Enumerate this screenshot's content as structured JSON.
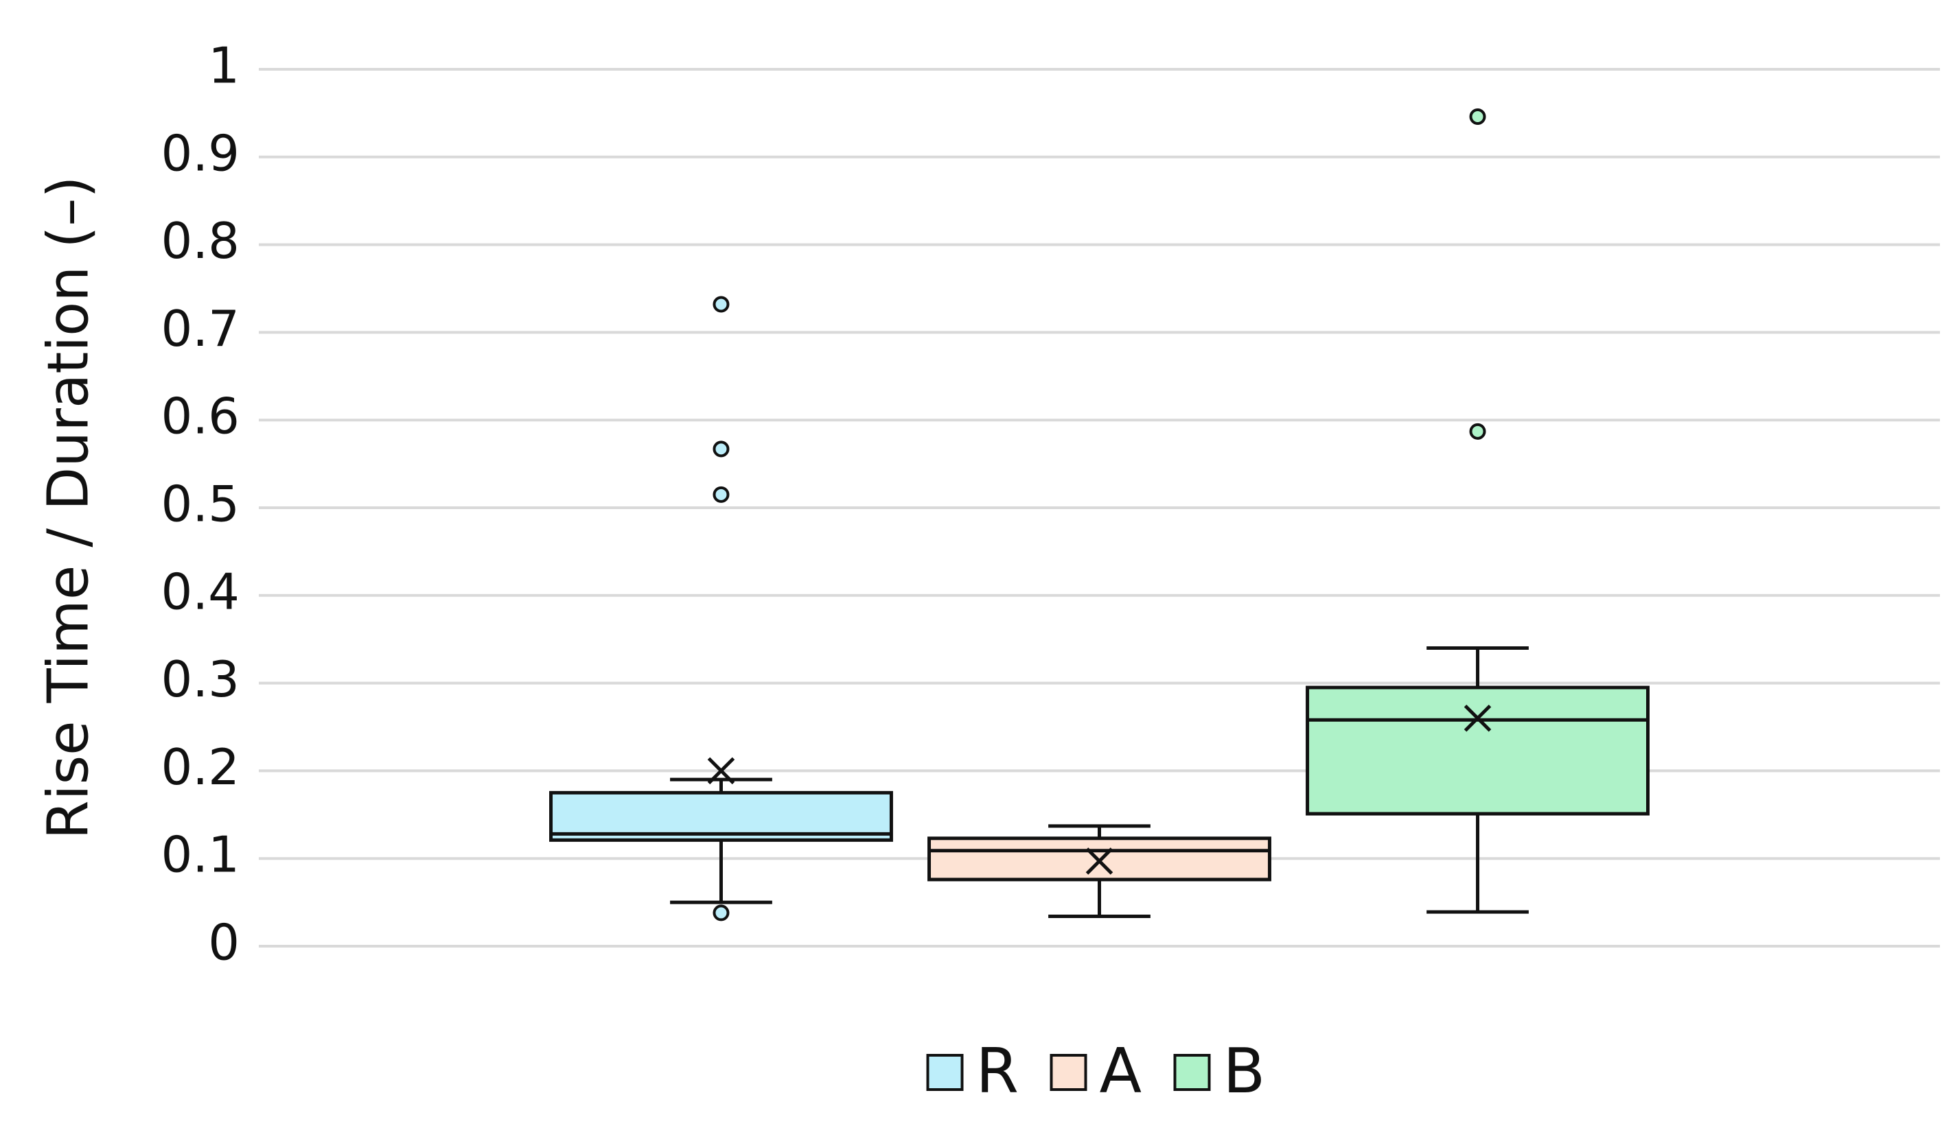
{
  "chart_data": {
    "type": "box",
    "y_label": "Rise Time / Duration (–)",
    "ylim": [
      0,
      1
    ],
    "yticks": [
      0,
      0.1,
      0.2,
      0.3,
      0.4,
      0.5,
      0.6,
      0.7,
      0.8,
      0.9,
      1
    ],
    "grid": true,
    "legend": "bottom",
    "series": [
      {
        "name": "R",
        "color": "#bdeefa",
        "min": 0.05,
        "q1": 0.121,
        "median": 0.128,
        "q3": 0.175,
        "max": 0.19,
        "mean": 0.2,
        "outliers": [
          0.732,
          0.567,
          0.515,
          0.038
        ]
      },
      {
        "name": "A",
        "color": "#fde3d4",
        "min": 0.034,
        "q1": 0.076,
        "median": 0.109,
        "q3": 0.123,
        "max": 0.137,
        "mean": 0.097,
        "outliers": []
      },
      {
        "name": "B",
        "color": "#aef2c8",
        "min": 0.039,
        "q1": 0.151,
        "median": 0.258,
        "q3": 0.295,
        "max": 0.34,
        "mean": 0.26,
        "outliers": [
          0.946,
          0.587
        ]
      }
    ]
  }
}
